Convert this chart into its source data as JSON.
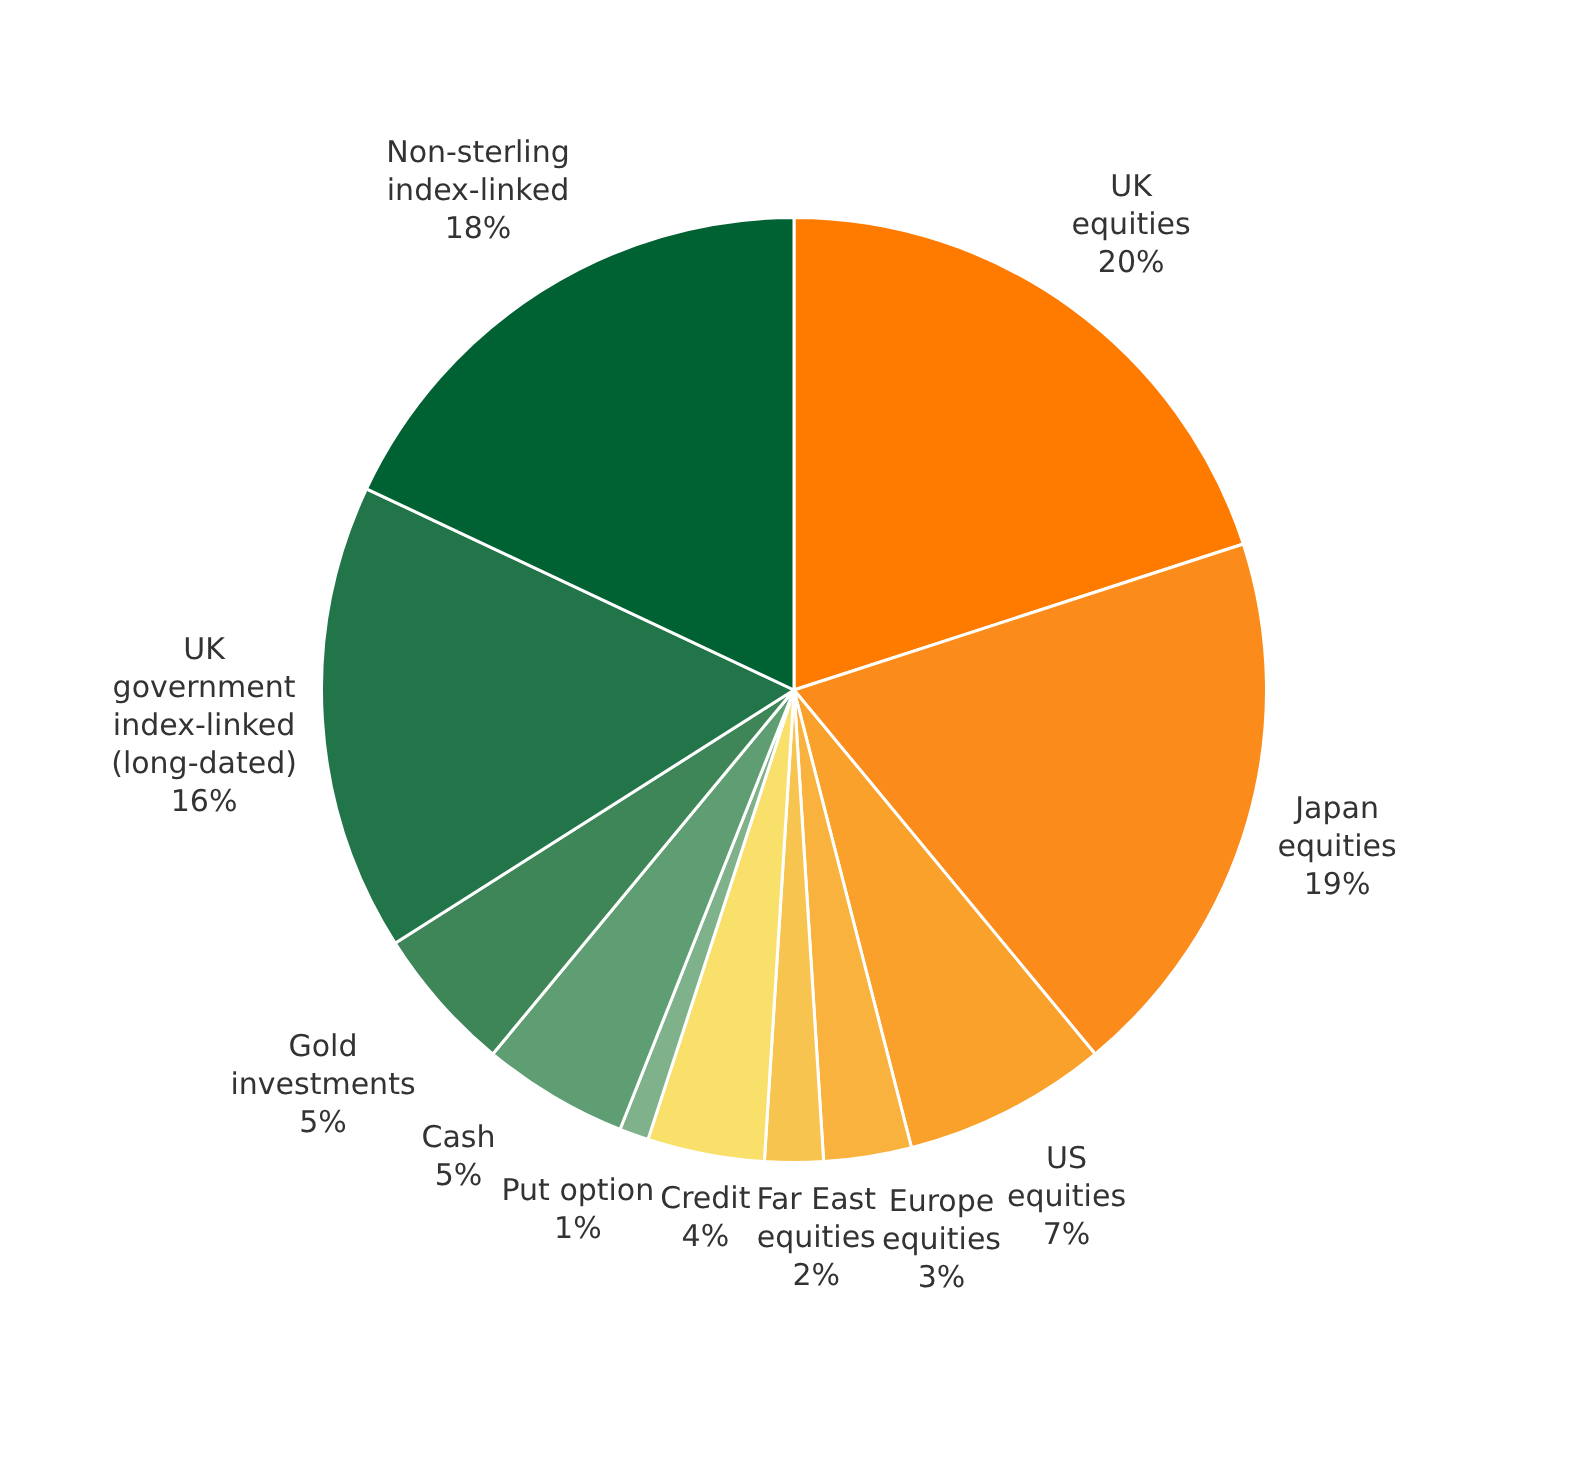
{
  "chart_data": {
    "type": "pie",
    "categories": [
      "UK equities",
      "Japan equities",
      "US equities",
      "Europe equities",
      "Far East equities",
      "Credit",
      "Put option",
      "Cash",
      "Gold investments",
      "UK government index-linked (long-dated)",
      "Non-sterling index-linked"
    ],
    "values": [
      20,
      19,
      7,
      3,
      2,
      4,
      1,
      5,
      5,
      16,
      18
    ],
    "colors": [
      "#ff7b00",
      "#fb8b1b",
      "#f9a12b",
      "#f9b23e",
      "#f8c450",
      "#f9e06a",
      "#7fb28a",
      "#5e9e72",
      "#3e8658",
      "#227548",
      "#006133"
    ],
    "value_labels": [
      "20%",
      "19%",
      "7%",
      "3%",
      "2%",
      "4%",
      "1%",
      "5%",
      "5%",
      "16%",
      "18%"
    ]
  }
}
